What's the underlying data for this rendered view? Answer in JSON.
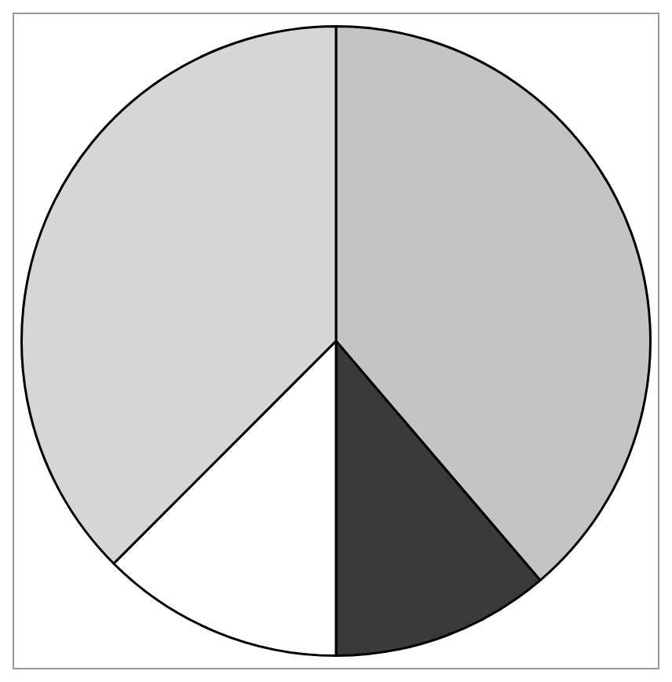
{
  "chart_data": {
    "type": "pie",
    "categories": [
      null,
      null,
      null,
      null
    ],
    "values": [
      38.75,
      11.25,
      12.5,
      37.5
    ],
    "colors": [
      "#c4c4c4",
      "#3a3a3a",
      "#ffffff",
      "#d6d6d6"
    ],
    "legend": false
  }
}
